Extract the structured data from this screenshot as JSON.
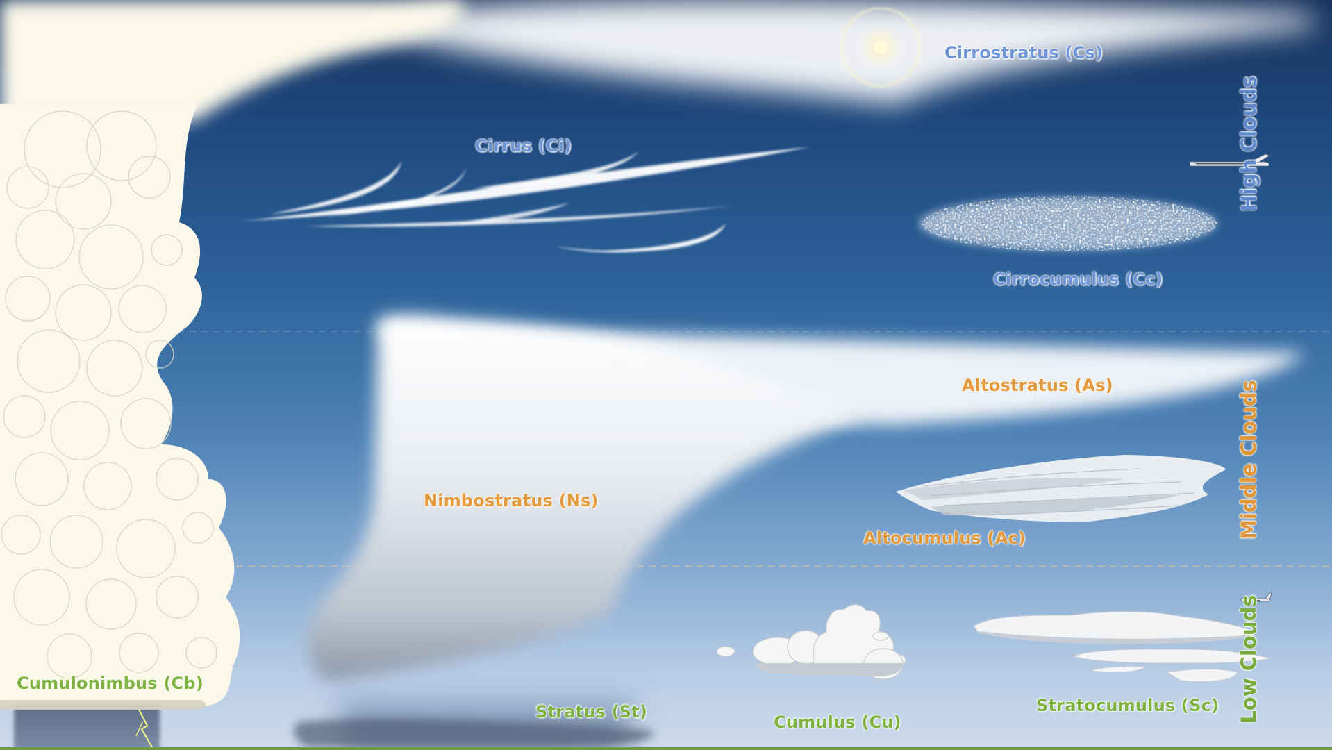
{
  "colors": {
    "high": "#6f95d6",
    "middle": "#e3993d",
    "low": "#7fb240",
    "ground": "#6f9a3f"
  },
  "bands": {
    "high": "High Clouds",
    "middle": "Middle Clouds",
    "low": "Low Clouds"
  },
  "clouds": {
    "cirrostratus": "Cirrostratus (Cs)",
    "cirrus": "Cirrus (Ci)",
    "cirrocumulus": "Cirrocumulus (Cc)",
    "altostratus": "Altostratus (As)",
    "nimbostratus": "Nimbostratus (Ns)",
    "altocumulus": "Altocumulus (Ac)",
    "cumulonimbus": "Cumulonimbus (Cb)",
    "stratus": "Stratus (St)",
    "cumulus": "Cumulus (Cu)",
    "stratocumulus": "Stratocumulus (Sc)"
  },
  "icons": [
    "sun-icon",
    "jet-airplane-icon",
    "propeller-airplane-icon",
    "lightning-bolt-icon"
  ]
}
